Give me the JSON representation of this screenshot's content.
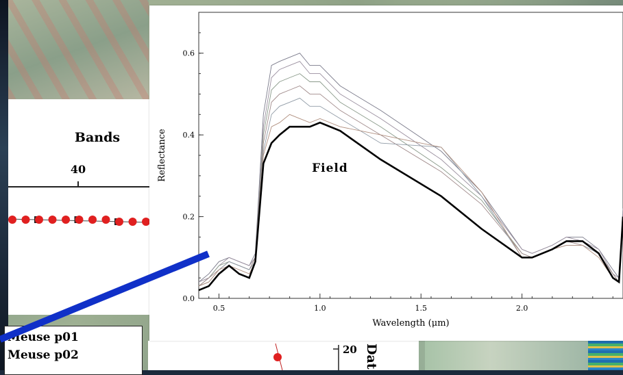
{
  "left_panel": {
    "title": "Bands",
    "tick_label": "40",
    "legend": [
      "Meuse p01",
      "Meuse p02"
    ]
  },
  "bottom_fragment": {
    "tick_label": "20",
    "rotated_text": "Dat"
  },
  "colors": {
    "field_line": "#000000",
    "link_line": "#1030c8",
    "marker": "#e02020"
  },
  "chart_data": {
    "type": "line",
    "title": "",
    "xlabel": "Wavelength (μm)",
    "ylabel": "Reflectance",
    "xlim": [
      0.4,
      2.5
    ],
    "ylim": [
      0.0,
      0.7
    ],
    "xticks": [
      0.5,
      1.0,
      1.5,
      2.0
    ],
    "xtick_labels": [
      "0.5",
      "1.0",
      "1.5",
      "2.0"
    ],
    "yticks": [
      0.0,
      0.2,
      0.4,
      0.6
    ],
    "ytick_labels": [
      "0.0",
      "0.2",
      "0.4",
      "0.6"
    ],
    "annotation": "Field",
    "series": [
      {
        "name": "Field",
        "x": [
          0.4,
          0.45,
          0.5,
          0.55,
          0.6,
          0.65,
          0.68,
          0.72,
          0.76,
          0.8,
          0.85,
          0.9,
          0.95,
          1.0,
          1.1,
          1.3,
          1.6,
          1.8,
          2.0,
          2.05,
          2.15,
          2.22,
          2.3,
          2.38,
          2.45,
          2.48,
          2.5
        ],
        "y": [
          0.02,
          0.03,
          0.06,
          0.08,
          0.06,
          0.05,
          0.09,
          0.33,
          0.38,
          0.4,
          0.42,
          0.42,
          0.42,
          0.43,
          0.41,
          0.34,
          0.25,
          0.17,
          0.1,
          0.1,
          0.12,
          0.14,
          0.14,
          0.11,
          0.05,
          0.04,
          0.2
        ]
      },
      {
        "x": [
          0.4,
          0.45,
          0.5,
          0.55,
          0.6,
          0.65,
          0.68,
          0.72,
          0.76,
          0.8,
          0.85,
          0.9,
          0.95,
          1.0,
          1.1,
          1.3,
          1.6,
          1.8,
          2.0,
          2.05,
          2.15,
          2.22,
          2.3,
          2.38,
          2.45,
          2.48,
          2.5
        ],
        "y": [
          0.04,
          0.06,
          0.09,
          0.1,
          0.09,
          0.08,
          0.11,
          0.45,
          0.57,
          0.58,
          0.59,
          0.6,
          0.57,
          0.57,
          0.52,
          0.46,
          0.36,
          0.26,
          0.12,
          0.11,
          0.13,
          0.15,
          0.15,
          0.12,
          0.07,
          0.05,
          0.22
        ]
      },
      {
        "x": [
          0.4,
          0.45,
          0.5,
          0.55,
          0.6,
          0.65,
          0.68,
          0.72,
          0.76,
          0.8,
          0.85,
          0.9,
          0.95,
          1.0,
          1.1,
          1.3,
          1.6,
          1.8,
          2.0,
          2.05,
          2.15,
          2.22,
          2.3,
          2.38,
          2.45,
          2.48,
          2.5
        ],
        "y": [
          0.04,
          0.05,
          0.08,
          0.1,
          0.09,
          0.08,
          0.1,
          0.42,
          0.54,
          0.56,
          0.57,
          0.58,
          0.55,
          0.55,
          0.5,
          0.44,
          0.34,
          0.25,
          0.12,
          0.11,
          0.13,
          0.15,
          0.14,
          0.12,
          0.06,
          0.05,
          0.21
        ]
      },
      {
        "x": [
          0.4,
          0.45,
          0.5,
          0.55,
          0.6,
          0.65,
          0.68,
          0.72,
          0.76,
          0.8,
          0.85,
          0.9,
          0.95,
          1.0,
          1.1,
          1.3,
          1.6,
          1.8,
          2.0,
          2.05,
          2.15,
          2.22,
          2.3,
          2.38,
          2.45,
          2.48,
          2.5
        ],
        "y": [
          0.03,
          0.05,
          0.08,
          0.09,
          0.08,
          0.07,
          0.1,
          0.4,
          0.51,
          0.53,
          0.54,
          0.55,
          0.53,
          0.53,
          0.48,
          0.42,
          0.32,
          0.24,
          0.11,
          0.1,
          0.12,
          0.14,
          0.14,
          0.11,
          0.06,
          0.04,
          0.2
        ]
      },
      {
        "x": [
          0.4,
          0.45,
          0.5,
          0.55,
          0.6,
          0.65,
          0.68,
          0.72,
          0.76,
          0.8,
          0.85,
          0.9,
          0.95,
          1.0,
          1.1,
          1.3,
          1.6,
          1.8,
          2.0,
          2.05,
          2.15,
          2.22,
          2.3,
          2.38,
          2.45,
          2.48,
          2.5
        ],
        "y": [
          0.03,
          0.05,
          0.07,
          0.09,
          0.08,
          0.07,
          0.1,
          0.38,
          0.48,
          0.5,
          0.51,
          0.52,
          0.5,
          0.5,
          0.46,
          0.4,
          0.31,
          0.23,
          0.11,
          0.1,
          0.12,
          0.14,
          0.13,
          0.11,
          0.06,
          0.04,
          0.19
        ]
      },
      {
        "x": [
          0.4,
          0.45,
          0.5,
          0.55,
          0.6,
          0.65,
          0.68,
          0.72,
          0.76,
          0.8,
          0.85,
          0.9,
          0.95,
          1.0,
          1.1,
          1.3,
          1.6,
          1.8,
          2.0,
          2.05,
          2.15,
          2.22,
          2.3,
          2.38,
          2.45,
          2.48,
          2.5
        ],
        "y": [
          0.03,
          0.04,
          0.07,
          0.09,
          0.08,
          0.07,
          0.09,
          0.36,
          0.45,
          0.47,
          0.48,
          0.49,
          0.47,
          0.47,
          0.44,
          0.38,
          0.37,
          0.25,
          0.1,
          0.1,
          0.12,
          0.13,
          0.13,
          0.11,
          0.05,
          0.04,
          0.19
        ]
      },
      {
        "x": [
          0.4,
          0.45,
          0.5,
          0.55,
          0.6,
          0.65,
          0.68,
          0.72,
          0.76,
          0.8,
          0.85,
          0.9,
          0.95,
          1.0,
          1.1,
          1.3,
          1.6,
          1.8,
          2.0,
          2.05,
          2.15,
          2.22,
          2.3,
          2.38,
          2.45,
          2.48,
          2.5
        ],
        "y": [
          0.03,
          0.04,
          0.07,
          0.08,
          0.07,
          0.06,
          0.09,
          0.35,
          0.42,
          0.43,
          0.45,
          0.44,
          0.43,
          0.44,
          0.42,
          0.4,
          0.37,
          0.26,
          0.1,
          0.1,
          0.12,
          0.13,
          0.13,
          0.1,
          0.05,
          0.04,
          0.18
        ]
      }
    ]
  }
}
